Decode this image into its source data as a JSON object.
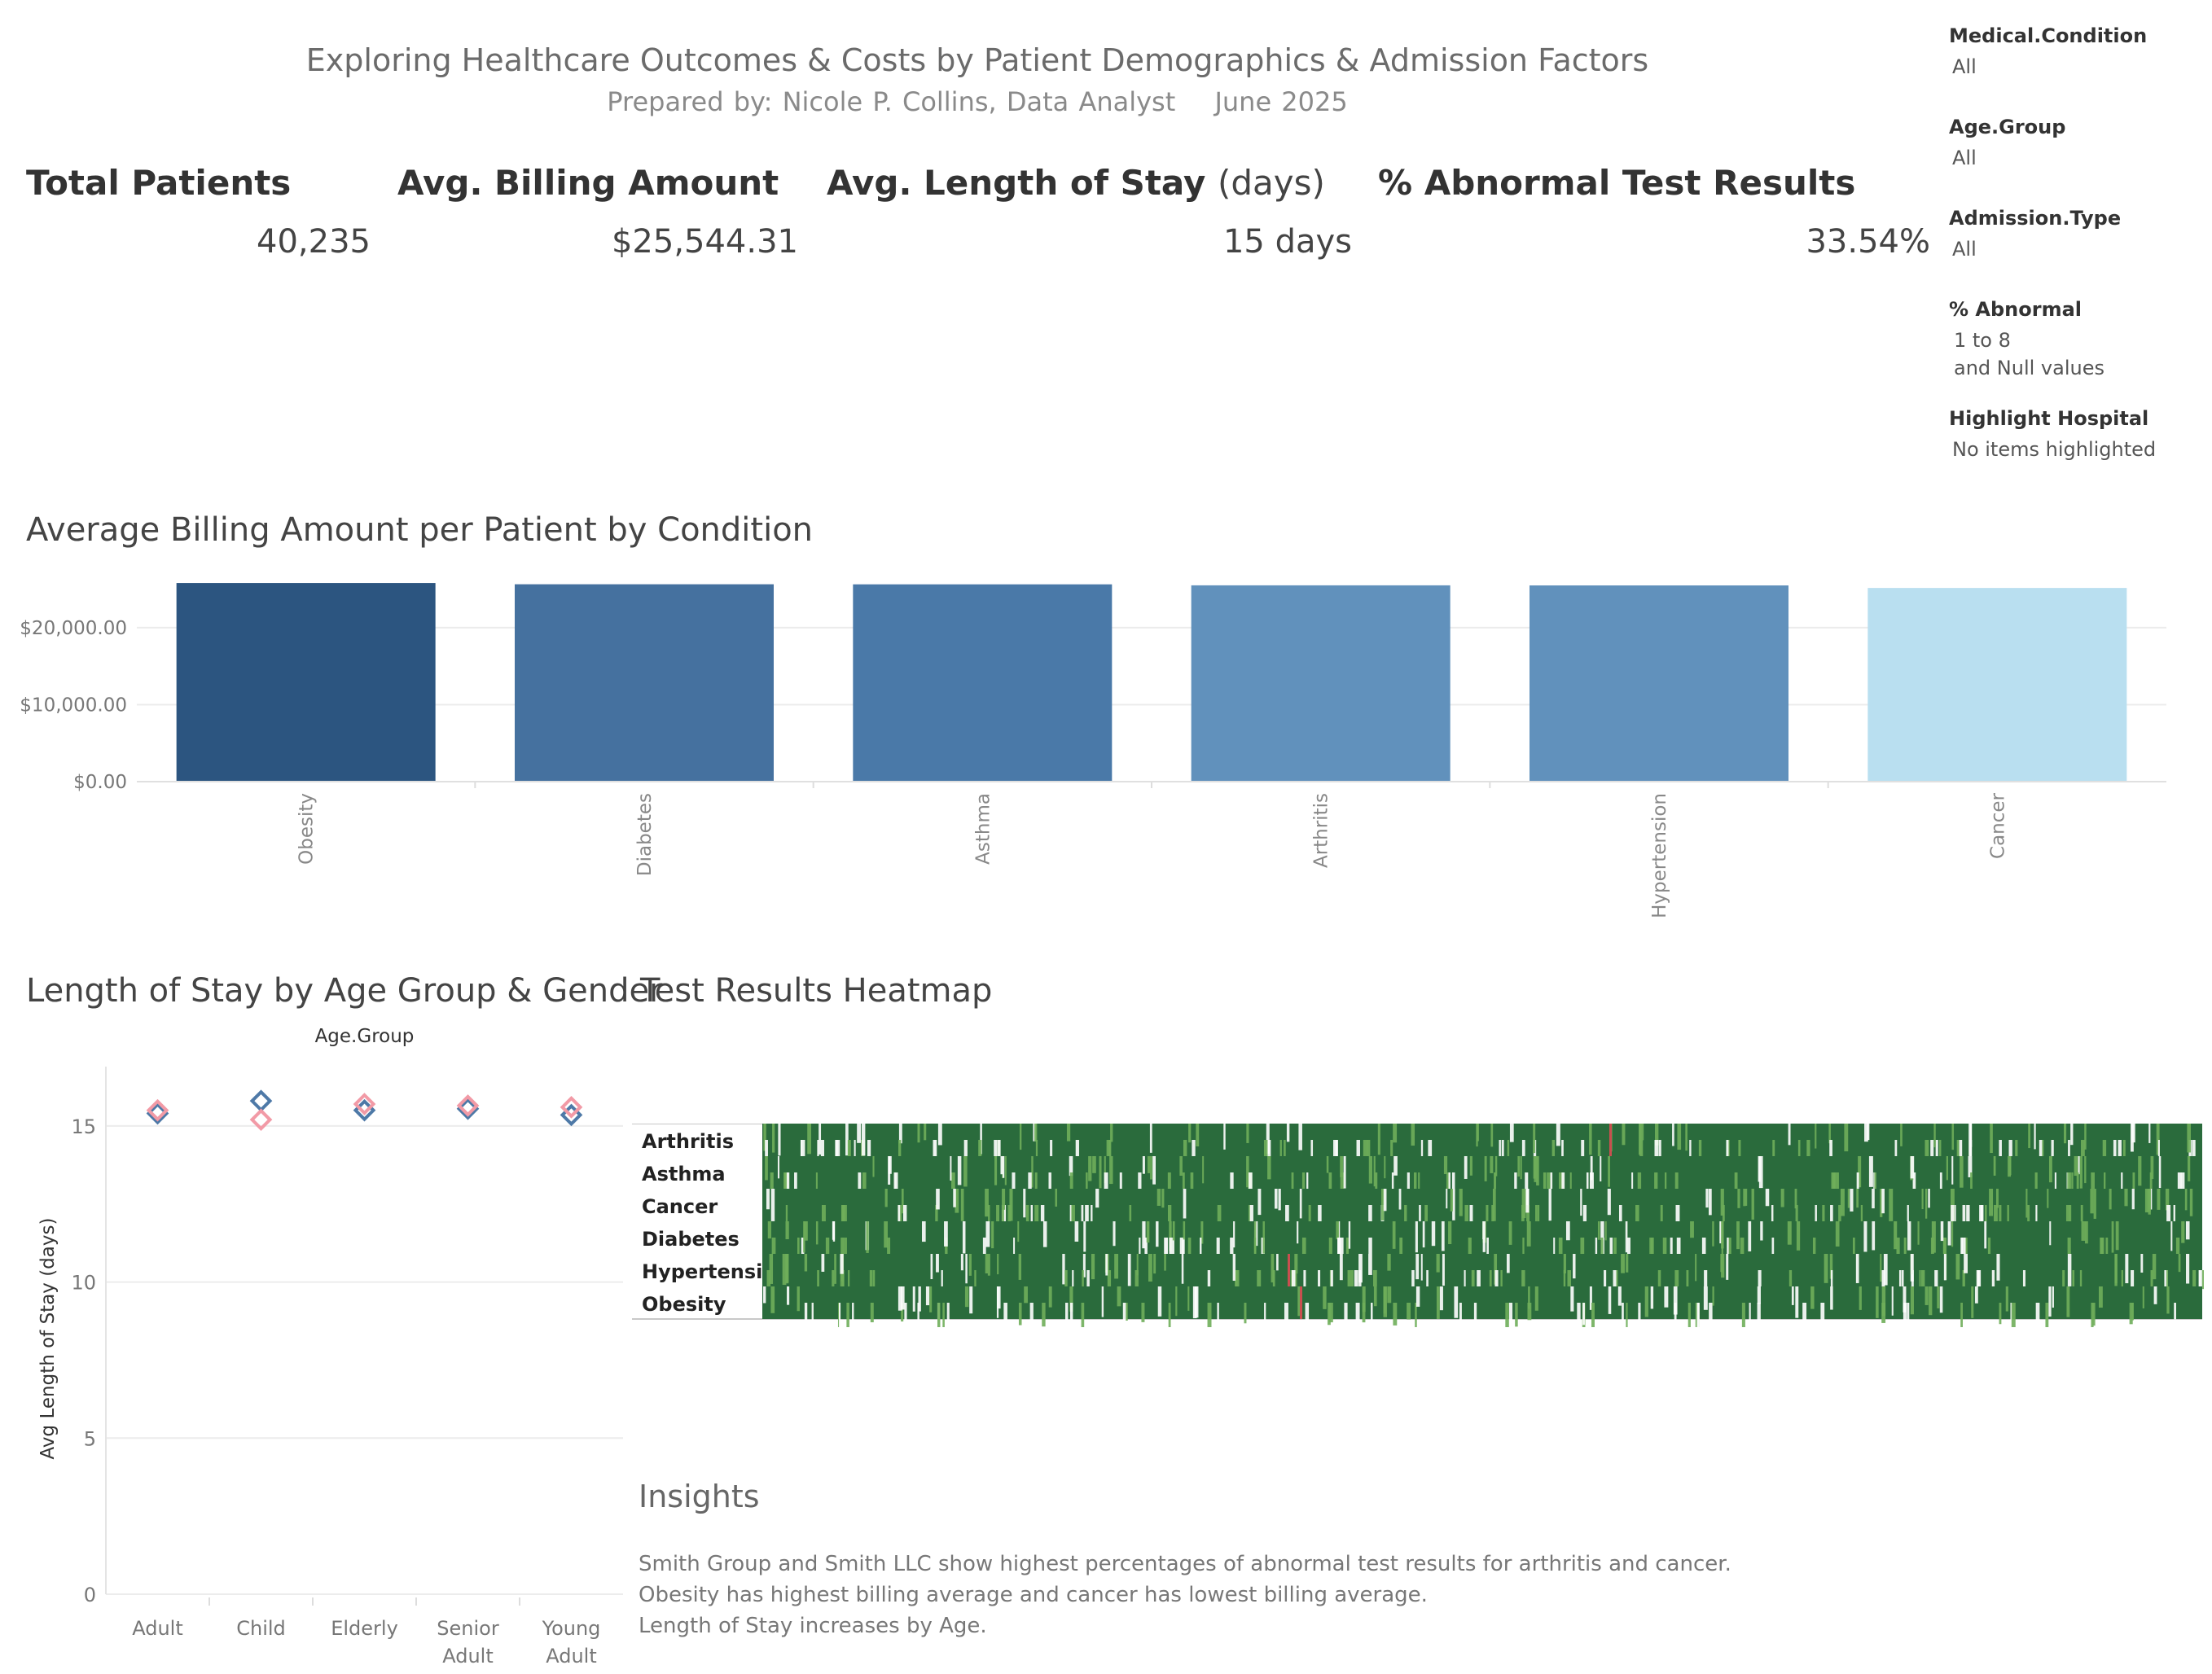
{
  "header": {
    "title": "Exploring Healthcare Outcomes & Costs by Patient Demographics & Admission Factors",
    "prepared_by": "Prepared by: Nicole P. Collins, Data Analyst",
    "date": "June 2025"
  },
  "kpis": {
    "total_patients": {
      "label": "Total Patients",
      "value": "40,235"
    },
    "avg_billing": {
      "label": "Avg. Billing Amount",
      "value": "$25,544.31"
    },
    "avg_los": {
      "label": "Avg. Length of Stay",
      "unit": "(days)",
      "value": "15 days"
    },
    "pct_abnormal": {
      "label": "% Abnormal Test Results",
      "value": "33.54%"
    }
  },
  "filters": [
    {
      "label": "Medical.Condition",
      "values": [
        "All"
      ]
    },
    {
      "label": "Age.Group",
      "values": [
        "All"
      ]
    },
    {
      "label": "Admission.Type",
      "values": [
        "All"
      ]
    },
    {
      "label": "% Abnormal",
      "values": [
        "1 to 8",
        "and Null values"
      ]
    },
    {
      "label": "Highlight Hospital",
      "values": [
        "No items highlighted"
      ]
    }
  ],
  "colors": {
    "male": "#4e79a7",
    "female": "#f29aa6",
    "heat_green": "#2a6b3c",
    "heat_light": "#6fae5a",
    "heat_red": "#c94f4f",
    "bar_colors": [
      "#2c5580",
      "#45719f",
      "#4a79a8",
      "#6191bc",
      "#6191bc",
      "#b9dff0"
    ]
  },
  "chart_data": [
    {
      "type": "bar",
      "title": "Average Billing Amount per Patient by Condition",
      "categories": [
        "Obesity",
        "Diabetes",
        "Asthma",
        "Arthritis",
        "Hypertension",
        "Cancer"
      ],
      "values": [
        25800,
        25640,
        25630,
        25500,
        25490,
        25160
      ],
      "y_ticks": [
        "$20,000.00",
        "$10,000.00",
        "$0.00"
      ],
      "y_tick_values": [
        20000,
        10000,
        0
      ],
      "ylim": [
        0,
        27500
      ]
    },
    {
      "type": "scatter",
      "title": "Length of Stay by Age Group & Gender",
      "column_header": "Age.Group",
      "ylabel": "Avg Length of Stay (days)",
      "categories": [
        "Adult",
        "Child",
        "Elderly",
        "Senior Adult",
        "Young Adult"
      ],
      "category_lines": [
        [
          "Adult"
        ],
        [
          "Child"
        ],
        [
          "Elderly"
        ],
        [
          "Senior",
          "Adult"
        ],
        [
          "Young",
          "Adult"
        ]
      ],
      "series": [
        {
          "values": [
            15.5,
            15.2,
            15.7,
            15.65,
            15.6
          ]
        },
        {
          "values": [
            15.4,
            15.8,
            15.5,
            15.55,
            15.35
          ]
        }
      ],
      "y_ticks": [
        "15",
        "10",
        "5",
        "0"
      ],
      "y_tick_values": [
        15,
        10,
        5,
        0
      ],
      "ylim": [
        0,
        16.9
      ]
    },
    {
      "type": "heatmap",
      "title": "Test Results Heatmap",
      "rows": [
        "Arthritis",
        "Asthma",
        "Cancer",
        "Diabetes",
        "Hypertensi..",
        "Obesity"
      ]
    }
  ],
  "insights": {
    "title": "Insights",
    "lines": [
      "Smith Group and Smith LLC show highest percentages of abnormal test results for arthritis and cancer.",
      "Obesity has highest billing average and cancer has lowest billing average.",
      "Length of Stay increases by Age."
    ]
  }
}
